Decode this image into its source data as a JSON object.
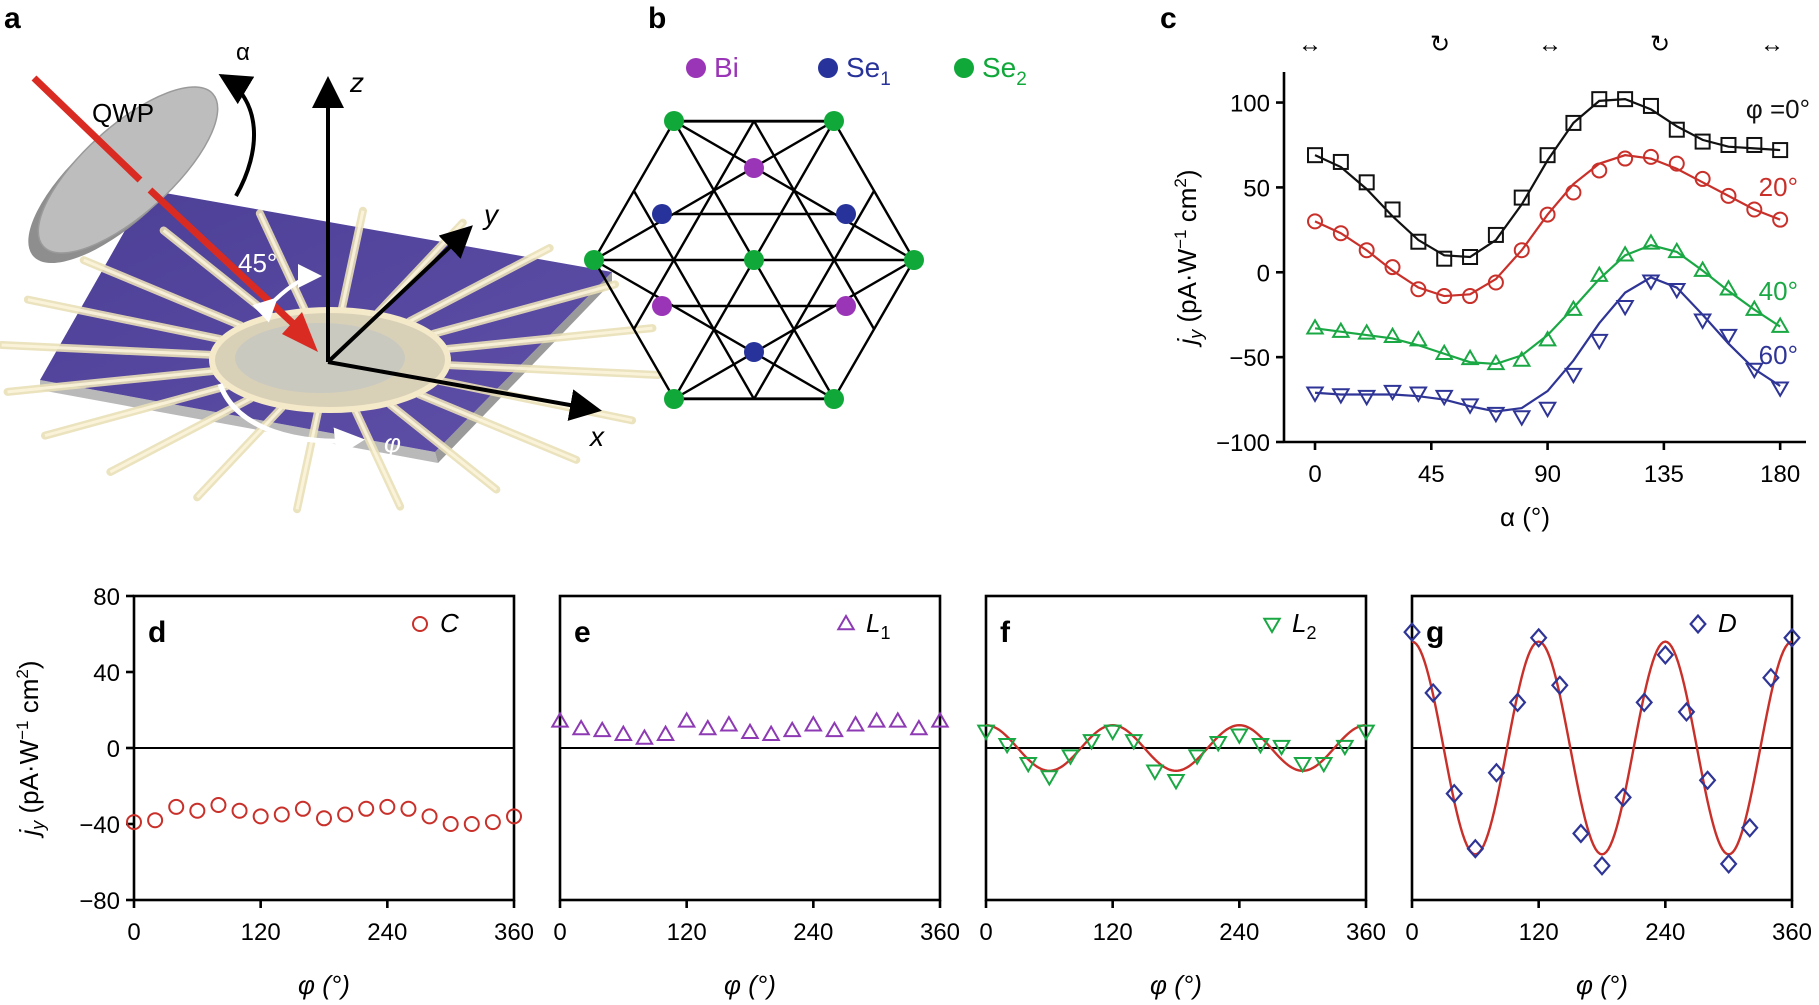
{
  "panels": {
    "a": "a",
    "b": "b",
    "c": "c",
    "d": "d",
    "e": "e",
    "f": "f",
    "g": "g"
  },
  "schematic": {
    "qwp": "QWP",
    "alpha": "α",
    "angle": "45°",
    "phi": "φ",
    "axis_x": "x",
    "axis_y": "y",
    "axis_z": "z"
  },
  "lattice": {
    "legend_bi": "Bi",
    "legend_se1": "Se",
    "legend_se1_sub": "1",
    "legend_se2": "Se",
    "legend_se2_sub": "2",
    "colors": {
      "bi": "#9b35b8",
      "se1": "#27339a",
      "se2": "#11a83a"
    }
  },
  "colors": {
    "black": "#111111",
    "red": "#c9302a",
    "green": "#1aa844",
    "blue": "#2f3596",
    "purple": "#8d3ab4"
  },
  "chart_data": [
    {
      "type": "line",
      "panel": "c",
      "xlabel": "α (°)",
      "ylabel": "j_y (pA·W^-1 cm^2)",
      "xlim": [
        -12,
        190
      ],
      "ylim": [
        -100,
        118
      ],
      "xticks": [
        0,
        45,
        90,
        135,
        180
      ],
      "yticks": [
        -100,
        -50,
        0,
        50,
        100
      ],
      "polarization_markers": [
        "↔",
        "↻",
        "↔",
        "↻",
        "↔"
      ],
      "series": [
        {
          "name": "φ =0°",
          "label_main": "φ =0°",
          "color": "#111111",
          "marker": "square",
          "x": [
            0,
            10,
            20,
            30,
            40,
            50,
            60,
            70,
            80,
            90,
            100,
            110,
            120,
            130,
            140,
            150,
            160,
            170,
            180
          ],
          "values": [
            69,
            65,
            53,
            37,
            18,
            8,
            9,
            22,
            44,
            69,
            88,
            102,
            102,
            98,
            84,
            77,
            75,
            75,
            72
          ],
          "fit": [
            69,
            62,
            49,
            33,
            19,
            10,
            9,
            19,
            40,
            66,
            88,
            101,
            102,
            96,
            86,
            78,
            74,
            73,
            72
          ]
        },
        {
          "name": "20°",
          "label_main": "20°",
          "color": "#c9302a",
          "marker": "circle",
          "x": [
            0,
            10,
            20,
            30,
            40,
            50,
            60,
            70,
            80,
            90,
            100,
            110,
            120,
            130,
            140,
            150,
            160,
            170,
            180
          ],
          "values": [
            30,
            23,
            13,
            3,
            -10,
            -14,
            -14,
            -6,
            13,
            34,
            47,
            60,
            67,
            68,
            64,
            55,
            45,
            37,
            31
          ],
          "fit": [
            30,
            23,
            13,
            1,
            -9,
            -14,
            -13,
            -4,
            13,
            34,
            52,
            64,
            69,
            67,
            61,
            53,
            45,
            37,
            31
          ]
        },
        {
          "name": "40°",
          "label_main": "40°",
          "color": "#1aa844",
          "marker": "triangle-up",
          "x": [
            0,
            10,
            20,
            30,
            40,
            50,
            60,
            70,
            80,
            90,
            100,
            110,
            120,
            130,
            140,
            150,
            160,
            170,
            180
          ],
          "values": [
            -33,
            -35,
            -36,
            -38,
            -40,
            -48,
            -51,
            -54,
            -52,
            -40,
            -22,
            -2,
            10,
            17,
            12,
            1,
            -10,
            -22,
            -32
          ],
          "fit": [
            -33,
            -35,
            -37,
            -39,
            -43,
            -48,
            -53,
            -54,
            -49,
            -37,
            -21,
            -4,
            10,
            16,
            12,
            1,
            -11,
            -22,
            -32
          ]
        },
        {
          "name": "60°",
          "label_main": "60°",
          "color": "#2f3596",
          "marker": "triangle-down",
          "x": [
            0,
            10,
            20,
            30,
            40,
            50,
            60,
            70,
            80,
            90,
            100,
            110,
            120,
            130,
            140,
            150,
            160,
            170,
            180
          ],
          "values": [
            -71,
            -72,
            -73,
            -70,
            -71,
            -73,
            -78,
            -83,
            -85,
            -80,
            -60,
            -40,
            -20,
            -5,
            -10,
            -28,
            -37,
            -57,
            -68
          ],
          "fit": [
            -71,
            -72,
            -72,
            -72,
            -73,
            -75,
            -79,
            -82,
            -80,
            -70,
            -52,
            -30,
            -12,
            -3,
            -9,
            -25,
            -42,
            -57,
            -67
          ]
        }
      ]
    },
    {
      "type": "scatter",
      "panel": "d",
      "legend": "C",
      "xlabel": "φ (°)",
      "ylabel": "j_y (pA·W^-1 cm^2)",
      "xlim": [
        0,
        360
      ],
      "ylim": [
        -80,
        80
      ],
      "xticks": [
        0,
        120,
        240,
        360
      ],
      "yticks": [
        -80,
        -40,
        0,
        40,
        80
      ],
      "color": "#c9302a",
      "marker": "circle",
      "x": [
        0,
        20,
        40,
        60,
        80,
        100,
        120,
        140,
        160,
        180,
        200,
        220,
        240,
        260,
        280,
        300,
        320,
        340,
        360
      ],
      "values": [
        -39,
        -38,
        -31,
        -33,
        -30,
        -33,
        -36,
        -35,
        -32,
        -37,
        -35,
        -32,
        -31,
        -32,
        -36,
        -40,
        -40,
        -39,
        -36
      ]
    },
    {
      "type": "scatter",
      "panel": "e",
      "legend": "L",
      "legend_sub": "1",
      "xlabel": "φ (°)",
      "xlim": [
        0,
        360
      ],
      "ylim": [
        -80,
        80
      ],
      "xticks": [
        0,
        120,
        240,
        360
      ],
      "color": "#8d3ab4",
      "marker": "triangle-up",
      "x": [
        0,
        20,
        40,
        60,
        80,
        100,
        120,
        140,
        160,
        180,
        200,
        220,
        240,
        260,
        280,
        300,
        320,
        340,
        360
      ],
      "values": [
        14,
        10,
        9,
        7,
        5,
        7,
        14,
        10,
        12,
        8,
        7,
        9,
        12,
        9,
        12,
        14,
        14,
        10,
        14
      ]
    },
    {
      "type": "scatter",
      "panel": "f",
      "legend": "L",
      "legend_sub": "2",
      "xlabel": "φ (°)",
      "xlim": [
        0,
        360
      ],
      "ylim": [
        -80,
        80
      ],
      "xticks": [
        0,
        120,
        240,
        360
      ],
      "color": "#1aa844",
      "marker": "triangle-down",
      "fit_color": "#c9302a",
      "fit_amplitude": 12,
      "fit_period": 120,
      "x": [
        0,
        20,
        40,
        60,
        80,
        100,
        120,
        140,
        160,
        180,
        200,
        220,
        240,
        260,
        280,
        300,
        320,
        340,
        360
      ],
      "values": [
        9,
        2,
        -8,
        -15,
        -4,
        4,
        9,
        4,
        -12,
        -17,
        -4,
        3,
        7,
        2,
        1,
        -8,
        -8,
        1,
        9
      ]
    },
    {
      "type": "scatter",
      "panel": "g",
      "legend": "D",
      "xlabel": "φ (°)",
      "xlim": [
        0,
        360
      ],
      "ylim": [
        -80,
        80
      ],
      "xticks": [
        0,
        120,
        240,
        360
      ],
      "color": "#2f3596",
      "marker": "diamond",
      "fit_color": "#c9302a",
      "fit_amplitude": 56,
      "fit_period": 120,
      "x": [
        0,
        20,
        40,
        60,
        80,
        100,
        120,
        140,
        160,
        180,
        200,
        220,
        240,
        260,
        280,
        300,
        320,
        340,
        360
      ],
      "values": [
        61,
        29,
        -24,
        -53,
        -13,
        24,
        58,
        33,
        -45,
        -62,
        -26,
        24,
        49,
        19,
        -17,
        -61,
        -42,
        37,
        58
      ]
    }
  ]
}
